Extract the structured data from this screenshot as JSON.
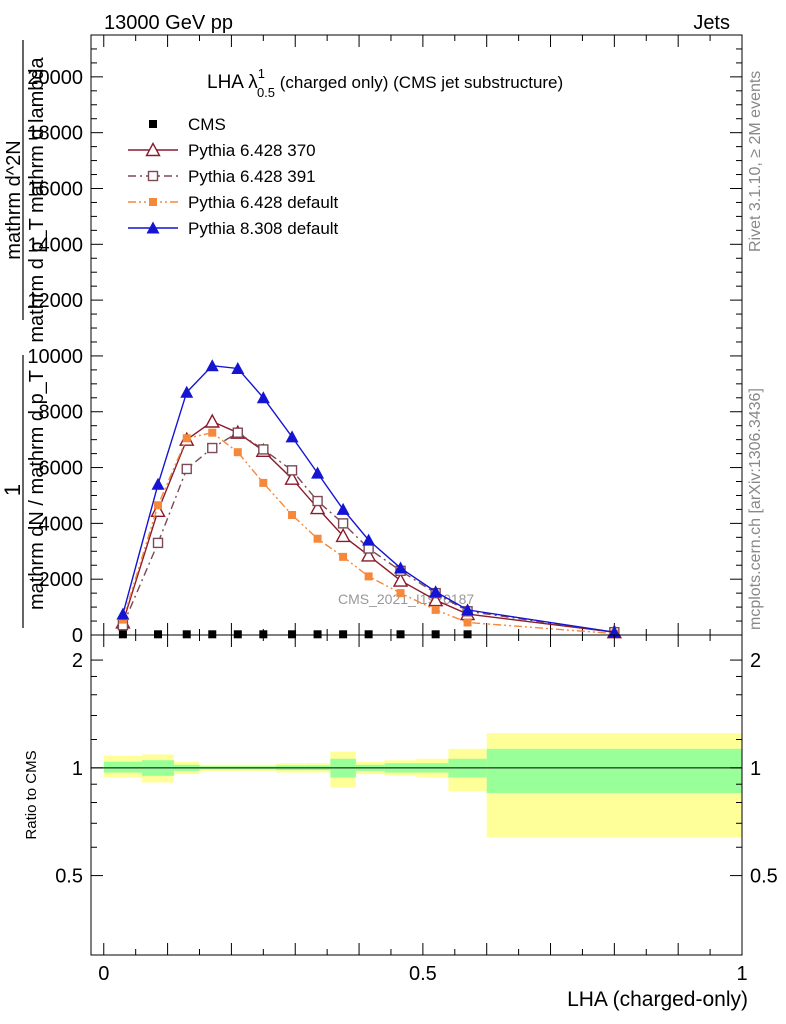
{
  "header": {
    "left": "13000 GeV pp",
    "right": "Jets"
  },
  "side": {
    "rivet": "Rivet 3.1.10, ≥ 2M events",
    "mcplots": "mcplots.cern.ch [arXiv:1306.3436]"
  },
  "watermark": "CMS_2021_I1920187",
  "chart_data": [
    {
      "type": "line",
      "title_main": "LHA λ",
      "title_sup": "1",
      "title_sub": "0.5",
      "title_rest": " (charged only) (CMS jet substructure)",
      "ylabel_top": "1",
      "ylabel_bottom": "mathrm dN / mathrm d p_T",
      "ylabel_num": "mathrm d^2N",
      "ylabel_den": "mathrm d p_T mathrm d lambda",
      "ylim": [
        0,
        21500
      ],
      "yticks": [
        0,
        2000,
        4000,
        6000,
        8000,
        10000,
        12000,
        14000,
        16000,
        18000,
        20000
      ],
      "ytick_labels": [
        "0",
        "2000",
        "4000",
        "6000",
        "8000",
        "10000",
        "12000",
        "14000",
        "16000",
        "18000",
        "20000"
      ],
      "x": [
        0.03,
        0.085,
        0.13,
        0.17,
        0.21,
        0.25,
        0.295,
        0.335,
        0.375,
        0.415,
        0.465,
        0.52,
        0.57,
        0.8
      ],
      "series": [
        {
          "name": "CMS",
          "color": "#000000",
          "marker": "filled-square",
          "dash": "none",
          "values": [
            25,
            25,
            25,
            25,
            25,
            25,
            25,
            25,
            25,
            25,
            25,
            25,
            25,
            null
          ]
        },
        {
          "name": "Pythia 6.428 370",
          "color": "#8b1a2b",
          "marker": "open-triangle",
          "dash": "solid",
          "values": [
            450,
            4450,
            7000,
            7650,
            7250,
            6600,
            5600,
            4550,
            3550,
            2850,
            1950,
            1250,
            750,
            100
          ]
        },
        {
          "name": "Pythia 6.428 391",
          "color": "#7b4a55",
          "marker": "open-square",
          "dash": "dashdot",
          "values": [
            350,
            3300,
            5950,
            6700,
            7250,
            6650,
            5900,
            4800,
            4000,
            3100,
            2300,
            1500,
            850,
            100
          ]
        },
        {
          "name": "Pythia 6.428 default",
          "color": "#f5883b",
          "marker": "filled-square",
          "dash": "dashdotdot",
          "values": [
            550,
            4650,
            7050,
            7250,
            6550,
            5450,
            4300,
            3450,
            2800,
            2100,
            1500,
            900,
            450,
            50
          ]
        },
        {
          "name": "Pythia 8.308 default",
          "color": "#1414d2",
          "marker": "filled-triangle",
          "dash": "solid",
          "values": [
            750,
            5400,
            8700,
            9650,
            9550,
            8500,
            7100,
            5800,
            4500,
            3400,
            2400,
            1550,
            900,
            100
          ]
        }
      ]
    },
    {
      "type": "area",
      "ylabel": "Ratio to CMS",
      "xlabel": "LHA (charged-only)",
      "ylim": [
        0.3,
        2.35
      ],
      "xlim": [
        -0.02,
        1.0
      ],
      "yticks": [
        0.5,
        1,
        2
      ],
      "ytick_labels": [
        "0.5",
        "1",
        "2"
      ],
      "xticks": [
        0,
        0.5,
        1
      ],
      "xtick_labels": [
        "0",
        "0.5",
        "1"
      ],
      "bins": [
        {
          "x0": 0.0,
          "x1": 0.06,
          "inner": [
            0.97,
            1.04
          ],
          "outer": [
            0.94,
            1.08
          ]
        },
        {
          "x0": 0.06,
          "x1": 0.11,
          "inner": [
            0.95,
            1.05
          ],
          "outer": [
            0.91,
            1.09
          ]
        },
        {
          "x0": 0.11,
          "x1": 0.15,
          "inner": [
            0.98,
            1.02
          ],
          "outer": [
            0.96,
            1.04
          ]
        },
        {
          "x0": 0.15,
          "x1": 0.19,
          "inner": [
            0.99,
            1.01
          ],
          "outer": [
            0.98,
            1.02
          ]
        },
        {
          "x0": 0.19,
          "x1": 0.23,
          "inner": [
            0.99,
            1.01
          ],
          "outer": [
            0.98,
            1.02
          ]
        },
        {
          "x0": 0.23,
          "x1": 0.27,
          "inner": [
            0.99,
            1.01
          ],
          "outer": [
            0.98,
            1.02
          ]
        },
        {
          "x0": 0.27,
          "x1": 0.315,
          "inner": [
            0.985,
            1.015
          ],
          "outer": [
            0.97,
            1.03
          ]
        },
        {
          "x0": 0.315,
          "x1": 0.355,
          "inner": [
            0.985,
            1.015
          ],
          "outer": [
            0.97,
            1.03
          ]
        },
        {
          "x0": 0.355,
          "x1": 0.395,
          "inner": [
            0.94,
            1.06
          ],
          "outer": [
            0.88,
            1.11
          ]
        },
        {
          "x0": 0.395,
          "x1": 0.44,
          "inner": [
            0.98,
            1.02
          ],
          "outer": [
            0.96,
            1.04
          ]
        },
        {
          "x0": 0.44,
          "x1": 0.49,
          "inner": [
            0.97,
            1.03
          ],
          "outer": [
            0.95,
            1.05
          ]
        },
        {
          "x0": 0.49,
          "x1": 0.54,
          "inner": [
            0.97,
            1.03
          ],
          "outer": [
            0.94,
            1.06
          ]
        },
        {
          "x0": 0.54,
          "x1": 0.6,
          "inner": [
            0.94,
            1.06
          ],
          "outer": [
            0.86,
            1.13
          ]
        },
        {
          "x0": 0.6,
          "x1": 1.0,
          "inner": [
            0.85,
            1.13
          ],
          "outer": [
            0.64,
            1.25
          ]
        }
      ],
      "inner_color": "#99ff99",
      "outer_color": "#ffff99"
    }
  ]
}
